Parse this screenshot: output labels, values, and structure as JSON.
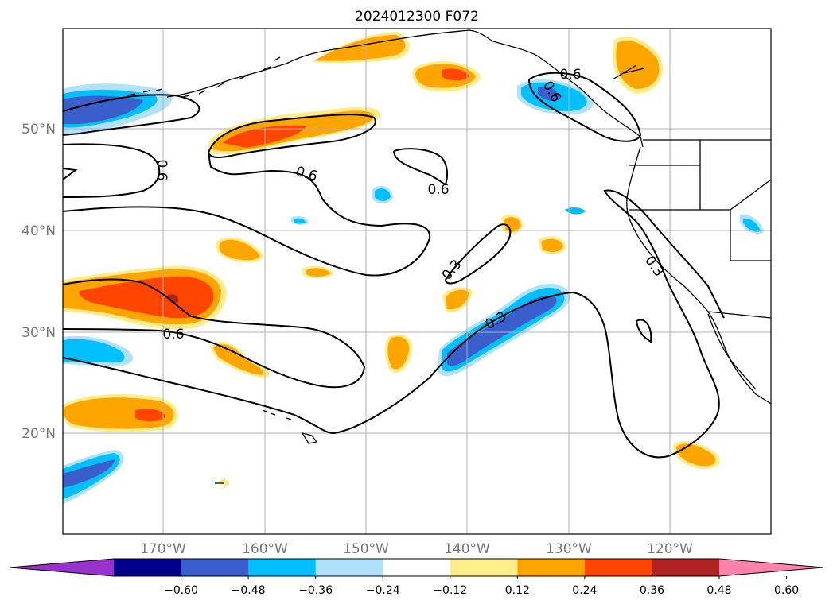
{
  "title": "2024012300 F072",
  "axes": {
    "lat_labels": [
      "50°N",
      "40°N",
      "30°N",
      "20°N"
    ],
    "lon_labels": [
      "170°W",
      "160°W",
      "150°W",
      "140°W",
      "130°W",
      "120°W"
    ]
  },
  "colorbar": {
    "ticks": [
      "−0.60",
      "−0.48",
      "−0.36",
      "−0.24",
      "−0.12",
      "0.12",
      "0.24",
      "0.36",
      "0.48",
      "0.60"
    ],
    "colors": [
      "#9932cc",
      "#00008b",
      "#3a5fcd",
      "#00bfff",
      "#b0e2ff",
      "#ffffff",
      "#ffec8b",
      "#ffa500",
      "#ff4500",
      "#b22222",
      "#ff82ab"
    ]
  },
  "contour_labels": [
    "0.6",
    "0.6",
    "0.6",
    "0.6",
    "0.6",
    "0.3",
    "0.3",
    "0.3",
    "0.6"
  ],
  "colors": {
    "grid": "#b0b0b0",
    "coast": "#000000",
    "contour": "#000000"
  }
}
